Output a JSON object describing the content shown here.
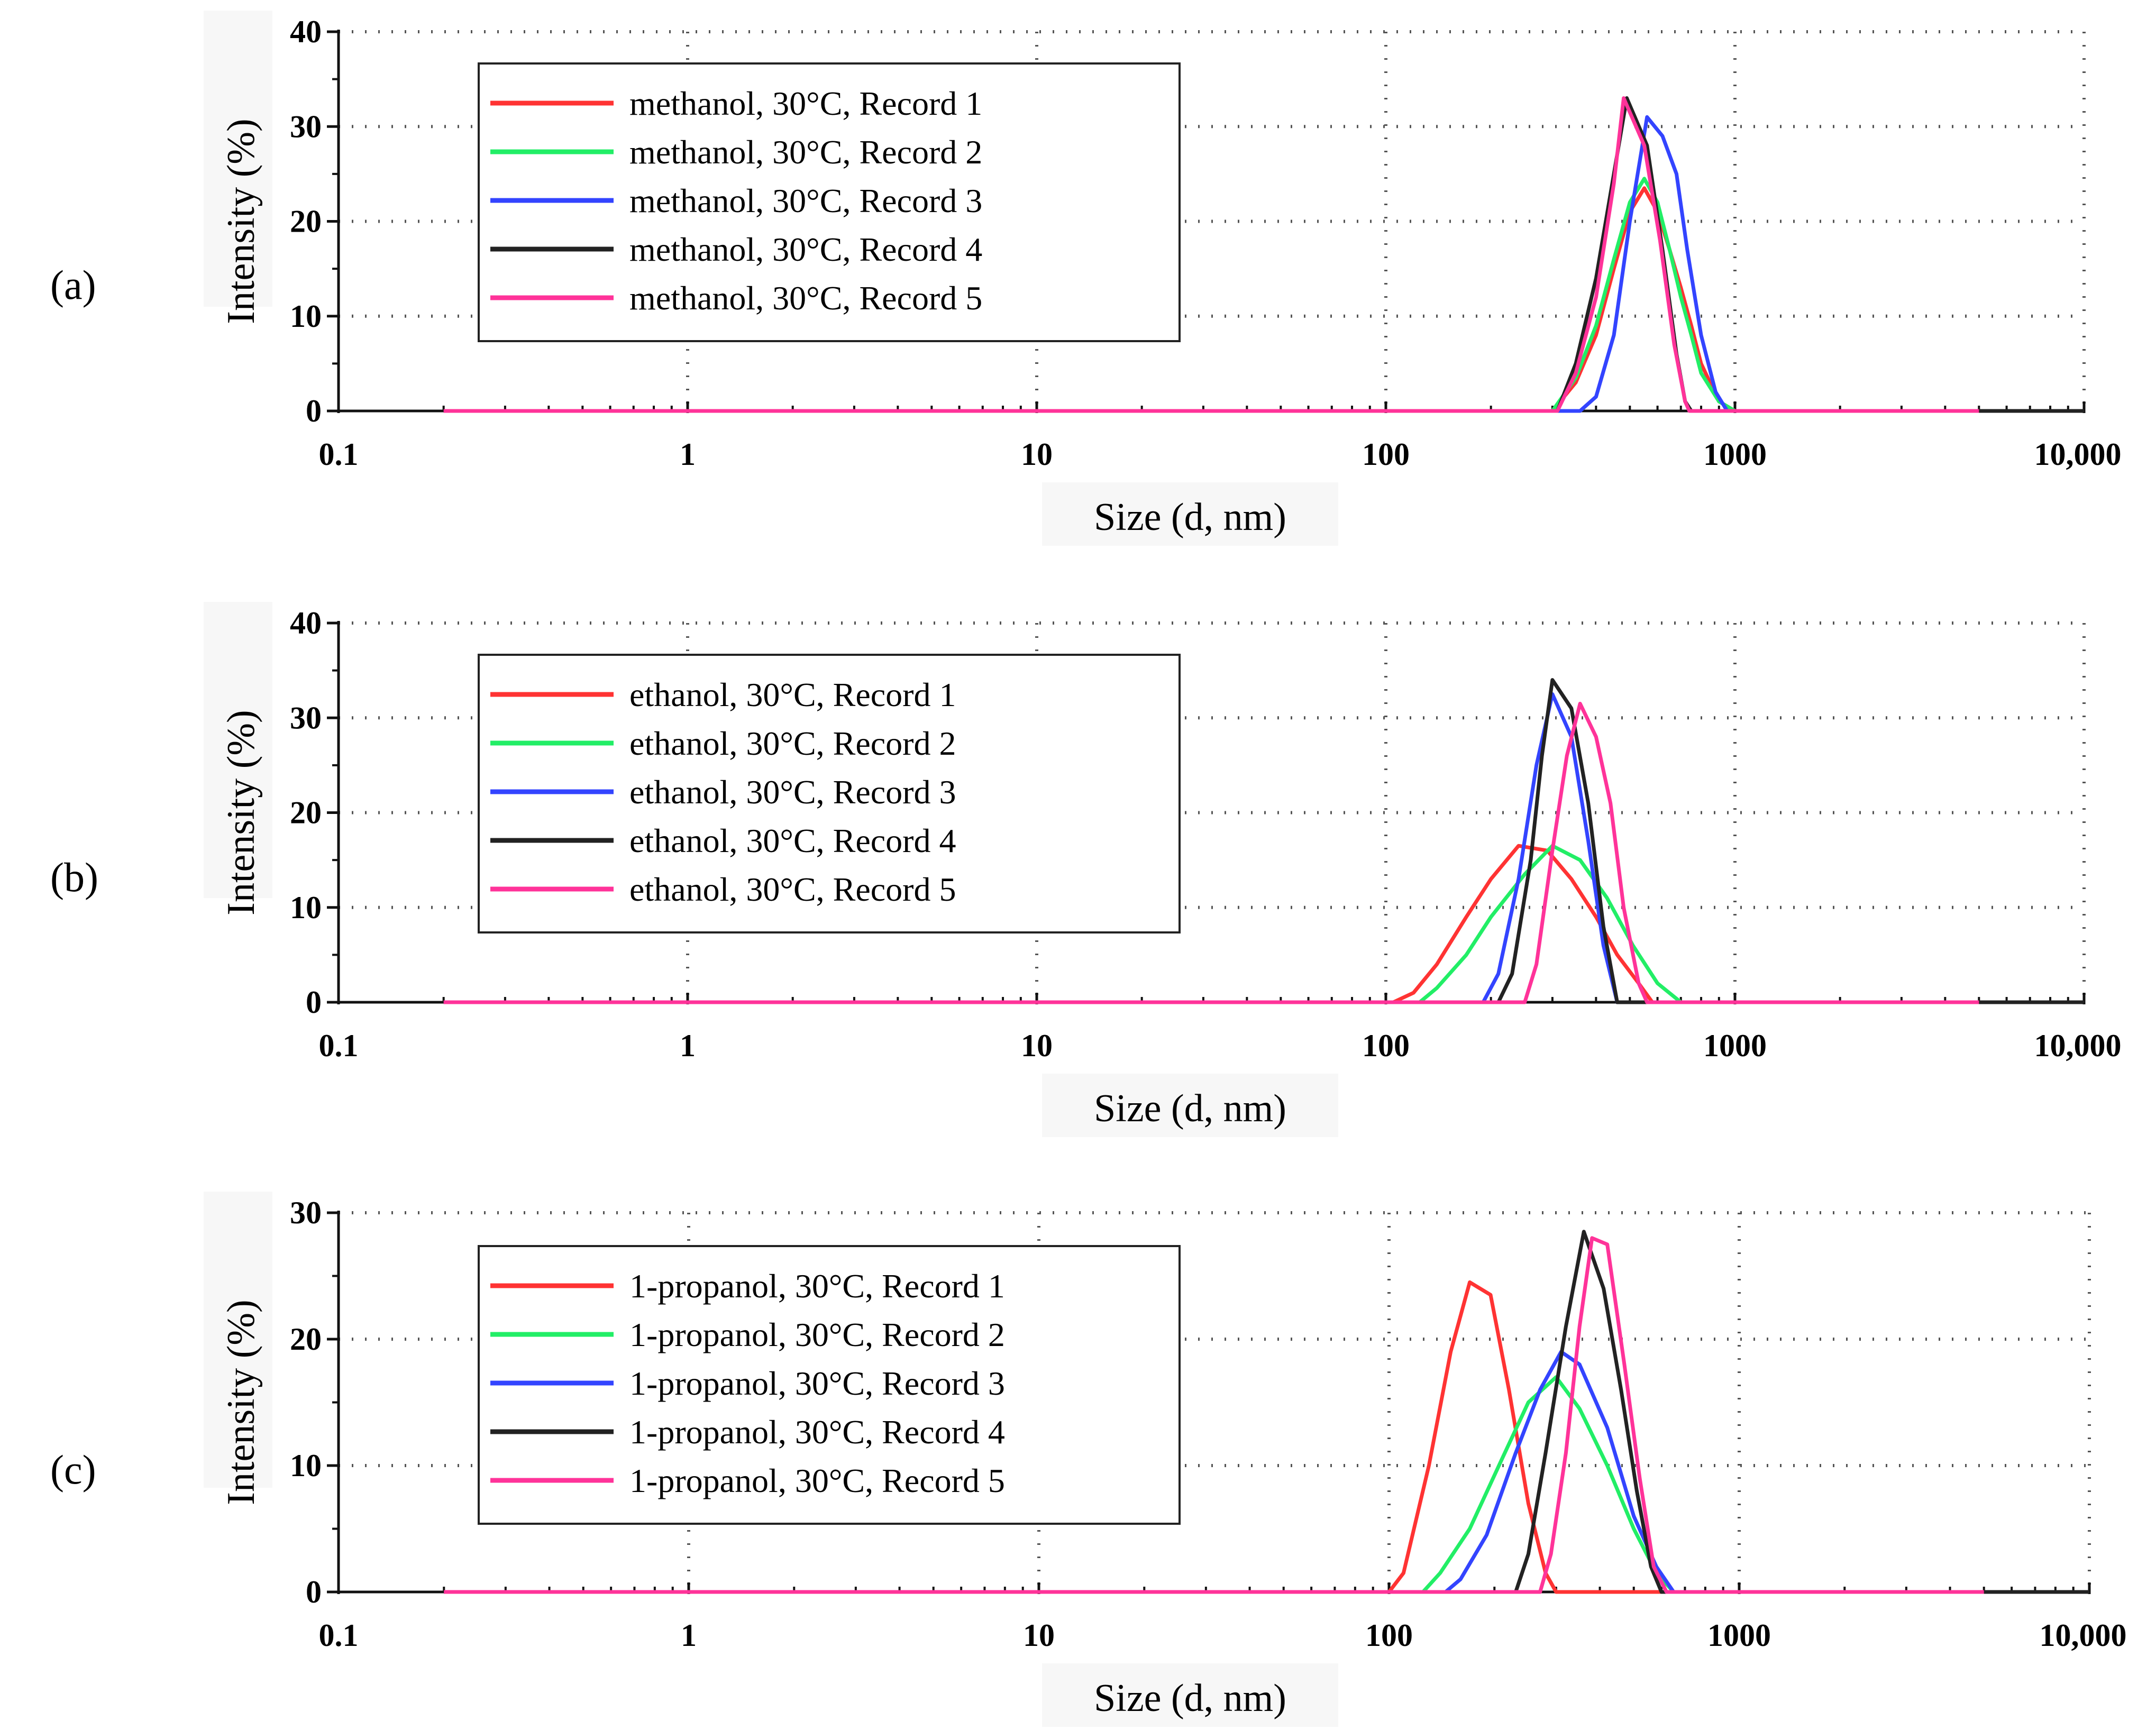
{
  "colors": {
    "record1": "#ff3333",
    "record2": "#22ee66",
    "record3": "#3344ff",
    "record4": "#222222",
    "record5": "#ff3399",
    "grid": "#555555"
  },
  "chart_data": [
    {
      "type": "line",
      "panel_label": "(a)",
      "panel_letter": "a",
      "xlabel": "Size (d, nm)",
      "ylabel": "Intensity (%)",
      "x_scale": "log",
      "xlim": [
        0.1,
        10000
      ],
      "ylim": [
        0,
        40
      ],
      "x_ticks": [
        0.1,
        1,
        10,
        100,
        1000,
        10000
      ],
      "x_tick_labels": [
        "0.1",
        "1",
        "10",
        "100",
        "1000",
        "10,000"
      ],
      "y_ticks": [
        0,
        10,
        20,
        30,
        40
      ],
      "y_tick_labels": [
        "0",
        "10",
        "20",
        "30",
        "40"
      ],
      "grid": true,
      "legend_position": "top-left",
      "series": [
        {
          "name": "methanol, 30°C, Record 1",
          "color_key": "record1",
          "points": [
            [
              0.2,
              0
            ],
            [
              300,
              0
            ],
            [
              350,
              3
            ],
            [
              400,
              8
            ],
            [
              450,
              15
            ],
            [
              500,
              21
            ],
            [
              550,
              23.5
            ],
            [
              600,
              21
            ],
            [
              650,
              17
            ],
            [
              700,
              13
            ],
            [
              750,
              9
            ],
            [
              800,
              5
            ],
            [
              900,
              1
            ],
            [
              1000,
              0
            ],
            [
              5000,
              0
            ]
          ]
        },
        {
          "name": "methanol, 30°C, Record 2",
          "color_key": "record2",
          "points": [
            [
              0.2,
              0
            ],
            [
              300,
              0
            ],
            [
              350,
              3.5
            ],
            [
              400,
              9
            ],
            [
              450,
              16
            ],
            [
              500,
              22
            ],
            [
              550,
              24.5
            ],
            [
              600,
              22
            ],
            [
              650,
              17
            ],
            [
              700,
              12
            ],
            [
              750,
              8
            ],
            [
              800,
              4
            ],
            [
              900,
              1
            ],
            [
              1000,
              0
            ],
            [
              5000,
              0
            ]
          ]
        },
        {
          "name": "methanol, 30°C, Record 3",
          "color_key": "record3",
          "points": [
            [
              0.2,
              0
            ],
            [
              360,
              0
            ],
            [
              400,
              1.5
            ],
            [
              450,
              8
            ],
            [
              500,
              20
            ],
            [
              560,
              31
            ],
            [
              620,
              29
            ],
            [
              680,
              25
            ],
            [
              730,
              17
            ],
            [
              800,
              8
            ],
            [
              880,
              2
            ],
            [
              950,
              0
            ],
            [
              5000,
              0
            ]
          ]
        },
        {
          "name": "methanol, 30°C, Record 4",
          "color_key": "record4",
          "points": [
            [
              0.2,
              0
            ],
            [
              310,
              0
            ],
            [
              350,
              5
            ],
            [
              400,
              14
            ],
            [
              450,
              25
            ],
            [
              490,
              33
            ],
            [
              560,
              28
            ],
            [
              620,
              17
            ],
            [
              680,
              6
            ],
            [
              720,
              1
            ],
            [
              750,
              0
            ],
            [
              5000,
              0
            ],
            [
              10000,
              0
            ]
          ]
        },
        {
          "name": "methanol, 30°C, Record 5",
          "color_key": "record5",
          "points": [
            [
              0.2,
              0
            ],
            [
              310,
              0
            ],
            [
              350,
              4
            ],
            [
              400,
              12
            ],
            [
              450,
              24
            ],
            [
              480,
              33
            ],
            [
              550,
              28
            ],
            [
              610,
              18
            ],
            [
              670,
              7
            ],
            [
              720,
              1
            ],
            [
              740,
              0
            ],
            [
              5000,
              0
            ]
          ]
        }
      ]
    },
    {
      "type": "line",
      "panel_label": "(b)",
      "panel_letter": "b",
      "xlabel": "Size (d, nm)",
      "ylabel": "Intensity (%)",
      "x_scale": "log",
      "xlim": [
        0.1,
        10000
      ],
      "ylim": [
        0,
        40
      ],
      "x_ticks": [
        0.1,
        1,
        10,
        100,
        1000,
        10000
      ],
      "x_tick_labels": [
        "0.1",
        "1",
        "10",
        "100",
        "1000",
        "10,000"
      ],
      "y_ticks": [
        0,
        10,
        20,
        30,
        40
      ],
      "y_tick_labels": [
        "0",
        "10",
        "20",
        "30",
        "40"
      ],
      "grid": true,
      "legend_position": "top-left",
      "series": [
        {
          "name": "ethanol, 30°C, Record 1",
          "color_key": "record1",
          "points": [
            [
              0.2,
              0
            ],
            [
              105,
              0
            ],
            [
              120,
              1
            ],
            [
              140,
              4
            ],
            [
              170,
              9
            ],
            [
              200,
              13
            ],
            [
              240,
              16.5
            ],
            [
              290,
              16
            ],
            [
              340,
              13
            ],
            [
              400,
              9
            ],
            [
              460,
              5
            ],
            [
              530,
              2
            ],
            [
              580,
              0
            ],
            [
              5000,
              0
            ]
          ]
        },
        {
          "name": "ethanol, 30°C, Record 2",
          "color_key": "record2",
          "points": [
            [
              0.2,
              0
            ],
            [
              125,
              0
            ],
            [
              140,
              1.5
            ],
            [
              170,
              5
            ],
            [
              200,
              9
            ],
            [
              250,
              13.5
            ],
            [
              300,
              16.5
            ],
            [
              360,
              15
            ],
            [
              430,
              11
            ],
            [
              510,
              6
            ],
            [
              600,
              2
            ],
            [
              700,
              0
            ],
            [
              5000,
              0
            ]
          ]
        },
        {
          "name": "ethanol, 30°C, Record 3",
          "color_key": "record3",
          "points": [
            [
              0.2,
              0
            ],
            [
              190,
              0
            ],
            [
              210,
              3
            ],
            [
              240,
              13
            ],
            [
              270,
              25
            ],
            [
              300,
              32.5
            ],
            [
              340,
              28
            ],
            [
              380,
              17
            ],
            [
              420,
              6
            ],
            [
              460,
              0
            ],
            [
              5000,
              0
            ]
          ]
        },
        {
          "name": "ethanol, 30°C, Record 4",
          "color_key": "record4",
          "points": [
            [
              0.2,
              0
            ],
            [
              210,
              0
            ],
            [
              230,
              3
            ],
            [
              260,
              15
            ],
            [
              280,
              26
            ],
            [
              300,
              34
            ],
            [
              340,
              31
            ],
            [
              380,
              21
            ],
            [
              420,
              8
            ],
            [
              460,
              0
            ],
            [
              5000,
              0
            ],
            [
              10000,
              0
            ]
          ]
        },
        {
          "name": "ethanol, 30°C, Record 5",
          "color_key": "record5",
          "points": [
            [
              0.2,
              0
            ],
            [
              250,
              0
            ],
            [
              270,
              4
            ],
            [
              300,
              16
            ],
            [
              330,
              26
            ],
            [
              360,
              31.5
            ],
            [
              400,
              28
            ],
            [
              440,
              21
            ],
            [
              480,
              10
            ],
            [
              530,
              2
            ],
            [
              560,
              0
            ],
            [
              5000,
              0
            ]
          ]
        }
      ]
    },
    {
      "type": "line",
      "panel_label": "(c)",
      "panel_letter": "c",
      "xlabel": "Size (d, nm)",
      "ylabel": "Intensity (%)",
      "x_scale": "log",
      "xlim": [
        0.1,
        10000
      ],
      "ylim": [
        0,
        30
      ],
      "x_ticks": [
        0.1,
        1,
        10,
        100,
        1000,
        10000
      ],
      "x_tick_labels": [
        "0.1",
        "1",
        "10",
        "100",
        "1000",
        "10,000"
      ],
      "y_ticks": [
        0,
        10,
        20,
        30
      ],
      "y_tick_labels": [
        "0",
        "10",
        "20",
        "30"
      ],
      "grid": true,
      "legend_position": "top-left",
      "series": [
        {
          "name": "1-propanol, 30°C, Record 1",
          "color_key": "record1",
          "points": [
            [
              0.2,
              0
            ],
            [
              100,
              0
            ],
            [
              110,
              1.5
            ],
            [
              130,
              10
            ],
            [
              150,
              19
            ],
            [
              170,
              24.5
            ],
            [
              195,
              23.5
            ],
            [
              220,
              16
            ],
            [
              250,
              7
            ],
            [
              280,
              1.5
            ],
            [
              300,
              0
            ],
            [
              5000,
              0
            ]
          ]
        },
        {
          "name": "1-propanol, 30°C, Record 2",
          "color_key": "record2",
          "points": [
            [
              0.2,
              0
            ],
            [
              125,
              0
            ],
            [
              140,
              1.5
            ],
            [
              170,
              5
            ],
            [
              210,
              10.5
            ],
            [
              250,
              15
            ],
            [
              300,
              17
            ],
            [
              350,
              14.5
            ],
            [
              420,
              10
            ],
            [
              500,
              5
            ],
            [
              580,
              1.5
            ],
            [
              650,
              0
            ],
            [
              5000,
              0
            ]
          ]
        },
        {
          "name": "1-propanol, 30°C, Record 3",
          "color_key": "record3",
          "points": [
            [
              0.2,
              0
            ],
            [
              145,
              0
            ],
            [
              160,
              1
            ],
            [
              190,
              4.5
            ],
            [
              230,
              11
            ],
            [
              270,
              16
            ],
            [
              310,
              19
            ],
            [
              350,
              18
            ],
            [
              420,
              13
            ],
            [
              500,
              6
            ],
            [
              580,
              2
            ],
            [
              650,
              0
            ],
            [
              5000,
              0
            ]
          ]
        },
        {
          "name": "1-propanol, 30°C, Record 4",
          "color_key": "record4",
          "points": [
            [
              0.2,
              0
            ],
            [
              230,
              0
            ],
            [
              250,
              3
            ],
            [
              280,
              11
            ],
            [
              320,
              21
            ],
            [
              360,
              28.5
            ],
            [
              410,
              24
            ],
            [
              460,
              16
            ],
            [
              510,
              8
            ],
            [
              560,
              2
            ],
            [
              600,
              0
            ],
            [
              5000,
              0
            ],
            [
              10000,
              0
            ]
          ]
        },
        {
          "name": "1-propanol, 30°C, Record 5",
          "color_key": "record5",
          "points": [
            [
              0.2,
              0
            ],
            [
              270,
              0
            ],
            [
              290,
              3
            ],
            [
              320,
              11
            ],
            [
              350,
              21
            ],
            [
              380,
              28
            ],
            [
              420,
              27.5
            ],
            [
              470,
              18
            ],
            [
              520,
              9
            ],
            [
              570,
              2
            ],
            [
              620,
              0
            ],
            [
              5000,
              0
            ]
          ]
        }
      ]
    }
  ]
}
